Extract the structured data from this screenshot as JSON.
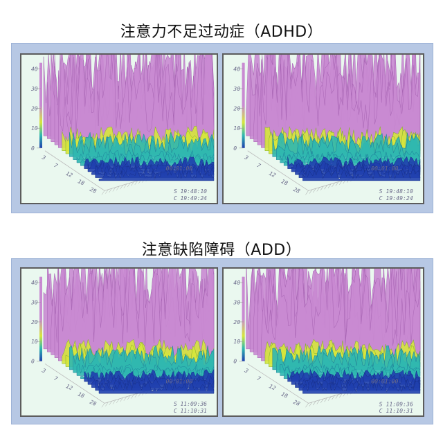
{
  "sections": [
    {
      "title": "注意力不足过动症（ADHD）",
      "panels": [
        {
          "time_center": "00:01:00",
          "start_label": "S 19:48:10",
          "end_label": "C 19:49:24"
        },
        {
          "time_center": "00:01:00",
          "start_label": "S 19:48:10",
          "end_label": "C 19:49:24"
        }
      ]
    },
    {
      "title": "注意缺陷障碍（ADD）",
      "panels": [
        {
          "time_center": "00:01:00",
          "start_label": "S 11:09:36",
          "end_label": "C 11:10:31"
        },
        {
          "time_center": "00:01:00",
          "start_label": "S 11:09:36",
          "end_label": "C 11:10:31"
        }
      ]
    }
  ],
  "y_ticks": [
    "0",
    "10",
    "20",
    "30",
    "40"
  ],
  "depth_ticks": [
    "3",
    "7",
    "12",
    "18",
    "28"
  ],
  "colors": {
    "frame": "#b7c8e4",
    "panel_bg": "#eaf8ef",
    "peak_high": "#c98ad2",
    "peak_mid": "#d6e63c",
    "ridge_mid": "#2fb7b0",
    "ridge_low": "#1f3fae"
  }
}
